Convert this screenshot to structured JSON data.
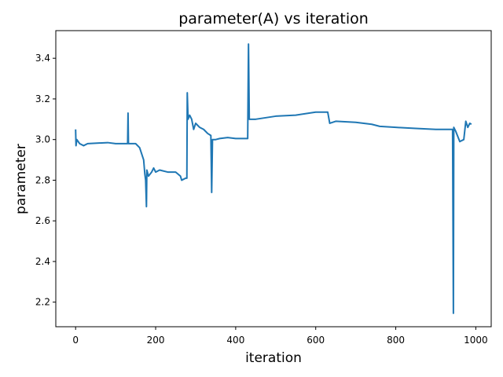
{
  "chart_data": {
    "type": "line",
    "title": "parameter(A) vs iteration",
    "x_label": "iteration",
    "y_label": "parameter",
    "x": [
      0,
      1,
      3,
      10,
      20,
      30,
      80,
      100,
      130,
      131,
      132,
      150,
      160,
      170,
      173,
      175,
      177,
      178,
      182,
      190,
      195,
      200,
      210,
      230,
      250,
      262,
      265,
      275,
      278,
      279,
      281,
      285,
      290,
      295,
      300,
      310,
      320,
      330,
      338,
      340,
      342,
      350,
      360,
      380,
      400,
      430,
      432,
      434,
      450,
      500,
      550,
      600,
      630,
      635,
      650,
      700,
      740,
      760,
      800,
      850,
      900,
      940,
      942,
      944,
      945,
      950,
      960,
      970,
      975,
      980,
      985,
      989
    ],
    "series": [
      {
        "name": "parameter",
        "color": "#1f77b4",
        "values": [
          3.05,
          2.97,
          3.0,
          2.98,
          2.97,
          2.98,
          2.985,
          2.98,
          2.98,
          3.13,
          2.98,
          2.98,
          2.96,
          2.9,
          2.83,
          2.8,
          2.67,
          2.85,
          2.82,
          2.84,
          2.86,
          2.84,
          2.85,
          2.84,
          2.84,
          2.82,
          2.8,
          2.81,
          2.81,
          3.23,
          3.1,
          3.12,
          3.1,
          3.05,
          3.08,
          3.06,
          3.05,
          3.03,
          3.02,
          2.74,
          3.0,
          3.0,
          3.005,
          3.01,
          3.005,
          3.005,
          3.47,
          3.1,
          3.1,
          3.115,
          3.12,
          3.135,
          3.135,
          3.08,
          3.09,
          3.085,
          3.075,
          3.065,
          3.06,
          3.055,
          3.05,
          3.05,
          3.05,
          2.145,
          3.06,
          3.04,
          2.99,
          3.0,
          3.09,
          3.06,
          3.08,
          3.075
        ]
      }
    ],
    "xlim": [
      -49.5,
      1038.5
    ],
    "xticks": [
      0,
      200,
      400,
      600,
      800,
      1000
    ],
    "ylim": [
      2.079,
      3.536
    ],
    "yticks": [
      2.2,
      2.4,
      2.6,
      2.8,
      {
        "value": 3,
        "label": "3.0"
      },
      3.2,
      3.4
    ]
  }
}
